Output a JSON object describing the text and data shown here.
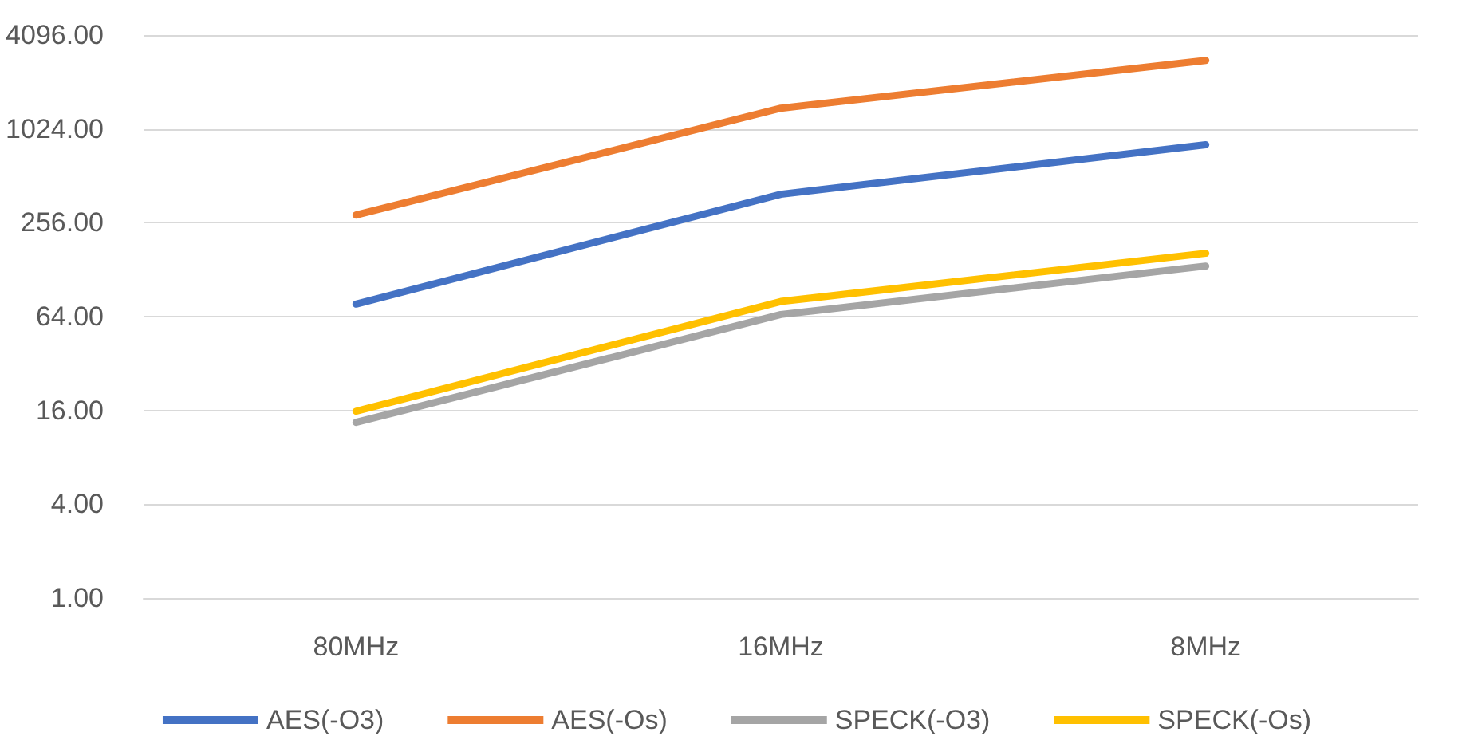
{
  "chart_data": {
    "type": "line",
    "categories": [
      "80MHz",
      "16MHz",
      "8MHz"
    ],
    "series": [
      {
        "name": "AES(-O3)",
        "color": "#4472c4",
        "values": [
          77,
          390,
          810
        ]
      },
      {
        "name": "AES(-Os)",
        "color": "#ed7d31",
        "values": [
          287,
          1390,
          2820
        ]
      },
      {
        "name": "SPECK(-O3)",
        "color": "#a5a5a5",
        "values": [
          13.4,
          66,
          135
        ]
      },
      {
        "name": "SPECK(-Os)",
        "color": "#ffc000",
        "values": [
          15.8,
          80,
          163
        ]
      }
    ],
    "log": true,
    "ylim": [
      1,
      4096
    ],
    "yticks": [
      {
        "value": 1,
        "label": "1.00"
      },
      {
        "value": 4,
        "label": "4.00"
      },
      {
        "value": 16,
        "label": "16.00"
      },
      {
        "value": 64,
        "label": "64.00"
      },
      {
        "value": 256,
        "label": "256.00"
      },
      {
        "value": 1024,
        "label": "1024.00"
      },
      {
        "value": 4096,
        "label": "4096.00"
      }
    ],
    "grid": "y",
    "legend": "bottom",
    "marker": "none",
    "line_style": "solid"
  }
}
